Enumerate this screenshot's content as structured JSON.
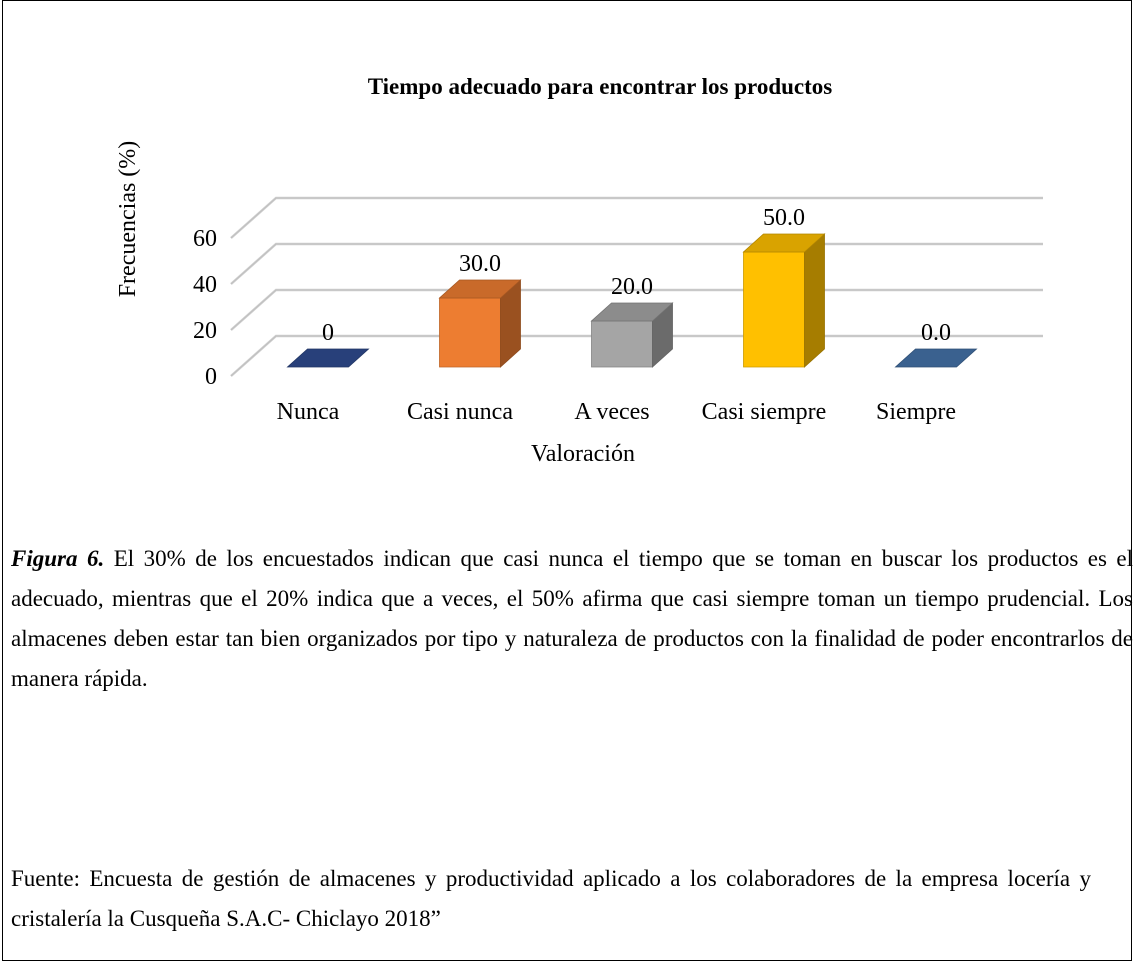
{
  "chart_data": {
    "type": "bar3d",
    "title": "Tiempo adecuado para encontrar los productos",
    "x_label": "Valoración",
    "y_label": "Frecuencias (%)",
    "categories": [
      "Nunca",
      "Casi nunca",
      "A veces",
      "Casi siempre",
      "Siempre"
    ],
    "values": [
      0,
      30,
      20,
      50,
      0
    ],
    "value_labels": [
      "0",
      "30.0",
      "20.0",
      "50.0",
      "0.0"
    ],
    "colors": [
      "#2f4b8f",
      "#ed7d31",
      "#a5a5a5",
      "#ffc000",
      "#4472a8"
    ],
    "ylim": [
      0,
      60
    ],
    "yticks": [
      0,
      20,
      40,
      60
    ],
    "grid": true
  },
  "caption": {
    "label": "Figura 6.",
    "text": "El 30% de los encuestados indican que casi nunca el tiempo que se toman en buscar los productos es el adecuado, mientras que el 20% indica que a veces, el 50% afirma que casi siempre toman un tiempo prudencial. Los almacenes deben estar tan bien organizados por tipo y naturaleza de productos con la finalidad de poder encontrarlos de manera rápida.",
    "source": "Fuente: Encuesta de gestión de almacenes y productividad aplicado a los colaboradores de la empresa locería y cristalería la Cusqueña S.A.C- Chiclayo 2018”"
  }
}
